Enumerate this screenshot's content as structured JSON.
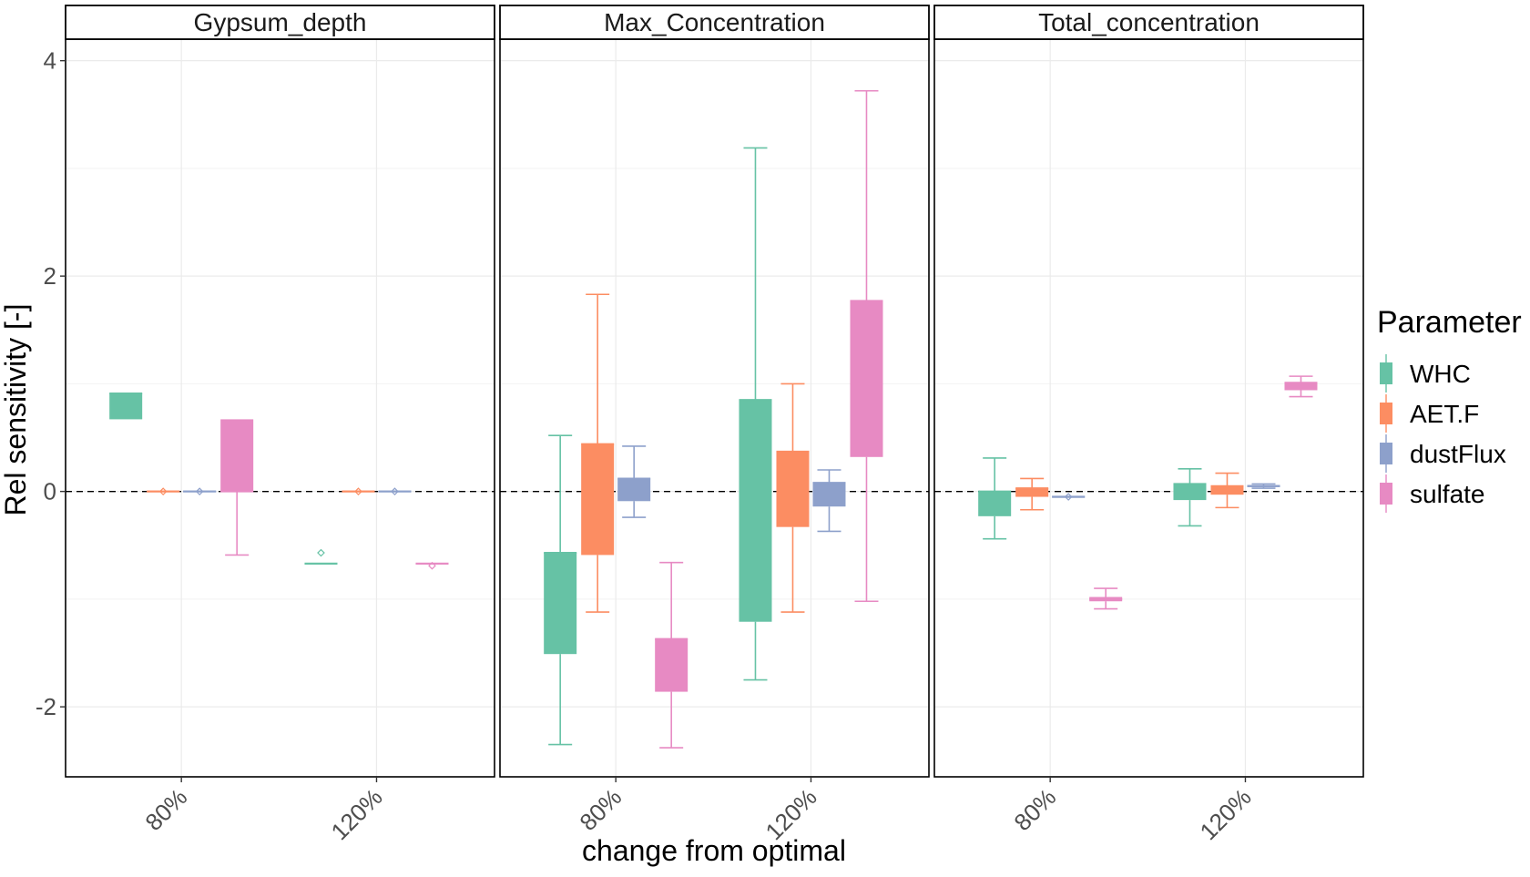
{
  "chart_data": {
    "type": "boxplot",
    "xlabel": "change from optimal",
    "ylabel": "Rel sensitivity [-]",
    "ylim": [
      -2.65,
      4.2
    ],
    "y_ticks": [
      -2,
      0,
      2,
      4
    ],
    "y_tick_labels": [
      "-2",
      "0",
      "2",
      "4"
    ],
    "categories": [
      "80%",
      "120%"
    ],
    "reference_line": 0,
    "grid": true,
    "legend": {
      "title": "Parameter",
      "placement": "right",
      "entries": [
        {
          "name": "WHC",
          "color": "#66c2a5"
        },
        {
          "name": "AET.F",
          "color": "#fc8d62"
        },
        {
          "name": "dustFlux",
          "color": "#8da0cb"
        },
        {
          "name": "sulfate",
          "color": "#e78ac3"
        }
      ]
    },
    "panels": [
      {
        "title": "Gypsum_depth",
        "boxes": [
          {
            "category": "80%",
            "series": "WHC",
            "q1": 0.67,
            "q3": 0.91,
            "median": 0.91
          },
          {
            "category": "80%",
            "series": "AET.F",
            "q1": 0,
            "q3": 0,
            "median": 0,
            "outliers": [
              0
            ]
          },
          {
            "category": "80%",
            "series": "dustFlux",
            "q1": 0,
            "q3": 0,
            "median": 0,
            "outliers": [
              0
            ]
          },
          {
            "category": "80%",
            "series": "sulfate",
            "q1": 0,
            "q3": 0.67,
            "median": 0,
            "whisker_low": -0.59
          },
          {
            "category": "120%",
            "series": "WHC",
            "q1": -0.67,
            "q3": -0.67,
            "median": -0.67,
            "outliers": [
              -0.57
            ]
          },
          {
            "category": "120%",
            "series": "AET.F",
            "q1": 0,
            "q3": 0,
            "median": 0,
            "outliers": [
              0
            ]
          },
          {
            "category": "120%",
            "series": "dustFlux",
            "q1": 0,
            "q3": 0,
            "median": 0,
            "outliers": [
              0
            ]
          },
          {
            "category": "120%",
            "series": "sulfate",
            "q1": -0.67,
            "q3": -0.67,
            "median": -0.67,
            "outliers": [
              -0.69
            ]
          }
        ]
      },
      {
        "title": "Max_Concentration",
        "boxes": [
          {
            "category": "80%",
            "series": "WHC",
            "q1": -1.51,
            "q3": -0.57,
            "median": -0.57,
            "whisker_low": -2.35,
            "whisker_high": 0.52
          },
          {
            "category": "80%",
            "series": "AET.F",
            "q1": -0.59,
            "q3": 0.44,
            "median": 0.44,
            "whisker_low": -1.12,
            "whisker_high": 1.83
          },
          {
            "category": "80%",
            "series": "dustFlux",
            "q1": -0.09,
            "q3": 0.12,
            "median": 0.12,
            "whisker_low": -0.24,
            "whisker_high": 0.42
          },
          {
            "category": "80%",
            "series": "sulfate",
            "q1": -1.86,
            "q3": -1.37,
            "median": -1.37,
            "whisker_low": -2.38,
            "whisker_high": -0.66
          },
          {
            "category": "120%",
            "series": "WHC",
            "q1": -1.21,
            "q3": 0.85,
            "median": 0.85,
            "whisker_low": -1.75,
            "whisker_high": 3.19
          },
          {
            "category": "120%",
            "series": "AET.F",
            "q1": -0.33,
            "q3": 0.37,
            "median": 0.37,
            "whisker_low": -1.12,
            "whisker_high": 1.0
          },
          {
            "category": "120%",
            "series": "dustFlux",
            "q1": -0.14,
            "q3": 0.08,
            "median": 0.08,
            "whisker_low": -0.37,
            "whisker_high": 0.2
          },
          {
            "category": "120%",
            "series": "sulfate",
            "q1": 0.32,
            "q3": 1.77,
            "median": 1.77,
            "whisker_low": -1.02,
            "whisker_high": 3.72
          }
        ]
      },
      {
        "title": "Total_concentration",
        "boxes": [
          {
            "category": "80%",
            "series": "WHC",
            "q1": -0.23,
            "q3": 0,
            "median": 0,
            "whisker_low": -0.44,
            "whisker_high": 0.31
          },
          {
            "category": "80%",
            "series": "AET.F",
            "q1": -0.05,
            "q3": 0.03,
            "median": 0.03,
            "whisker_low": -0.17,
            "whisker_high": 0.12
          },
          {
            "category": "80%",
            "series": "dustFlux",
            "q1": -0.06,
            "q3": -0.04,
            "median": -0.05,
            "outliers": [
              -0.05
            ]
          },
          {
            "category": "80%",
            "series": "sulfate",
            "q1": -1.02,
            "q3": -0.98,
            "median": -1.0,
            "whisker_low": -1.09,
            "whisker_high": -0.9
          },
          {
            "category": "120%",
            "series": "WHC",
            "q1": -0.08,
            "q3": 0.07,
            "median": 0.07,
            "whisker_low": -0.32,
            "whisker_high": 0.21
          },
          {
            "category": "120%",
            "series": "AET.F",
            "q1": -0.03,
            "q3": 0.05,
            "median": 0.05,
            "whisker_low": -0.15,
            "whisker_high": 0.17
          },
          {
            "category": "120%",
            "series": "dustFlux",
            "q1": 0.04,
            "q3": 0.06,
            "median": 0.05,
            "whisker_low": 0.03,
            "whisker_high": 0.07
          },
          {
            "category": "120%",
            "series": "sulfate",
            "q1": 0.94,
            "q3": 1.01,
            "median": 1.01,
            "whisker_low": 0.88,
            "whisker_high": 1.07
          }
        ]
      }
    ]
  }
}
